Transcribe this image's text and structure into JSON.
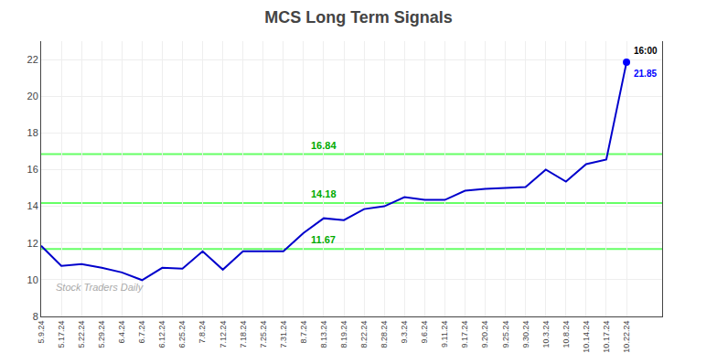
{
  "chart_data": {
    "type": "line",
    "title": "MCS Long Term Signals",
    "categories": [
      "5.9.24",
      "5.17.24",
      "5.22.24",
      "5.29.24",
      "6.4.24",
      "6.7.24",
      "6.12.24",
      "6.25.24",
      "7.8.24",
      "7.12.24",
      "7.18.24",
      "7.25.24",
      "7.31.24",
      "8.7.24",
      "8.13.24",
      "8.19.24",
      "8.22.24",
      "8.28.24",
      "9.3.24",
      "9.6.24",
      "9.11.24",
      "9.17.24",
      "9.20.24",
      "9.25.24",
      "9.30.24",
      "10.3.24",
      "10.8.24",
      "10.14.24",
      "10.17.24",
      "10.22.24"
    ],
    "values": [
      11.85,
      10.75,
      10.85,
      10.65,
      10.4,
      9.98,
      10.65,
      10.6,
      11.55,
      10.55,
      11.55,
      11.55,
      11.55,
      12.55,
      13.35,
      13.25,
      13.85,
      14.0,
      14.5,
      14.35,
      14.35,
      14.85,
      14.95,
      15.0,
      15.05,
      16.0,
      15.35,
      16.3,
      16.55,
      21.85
    ],
    "color": "#0000cc",
    "last_point": {
      "marker": "circle",
      "color": "#0000ff"
    },
    "hlines": [
      {
        "value": 11.67,
        "label": "11.67"
      },
      {
        "value": 14.18,
        "label": "14.18"
      },
      {
        "value": 16.84,
        "label": "16.84"
      }
    ],
    "hline_color": "#66ff66",
    "hline_label_color": "#00aa00",
    "annotations": [
      {
        "text": "16:00",
        "color": "#000000"
      },
      {
        "text": "21.85",
        "color": "#0000ff"
      }
    ],
    "watermark": {
      "text": "Stock Traders Daily",
      "color": "#aaaaaa"
    },
    "ylim": [
      8,
      23
    ],
    "yticks": [
      8,
      10,
      12,
      14,
      16,
      18,
      20,
      22
    ],
    "grid": true
  }
}
